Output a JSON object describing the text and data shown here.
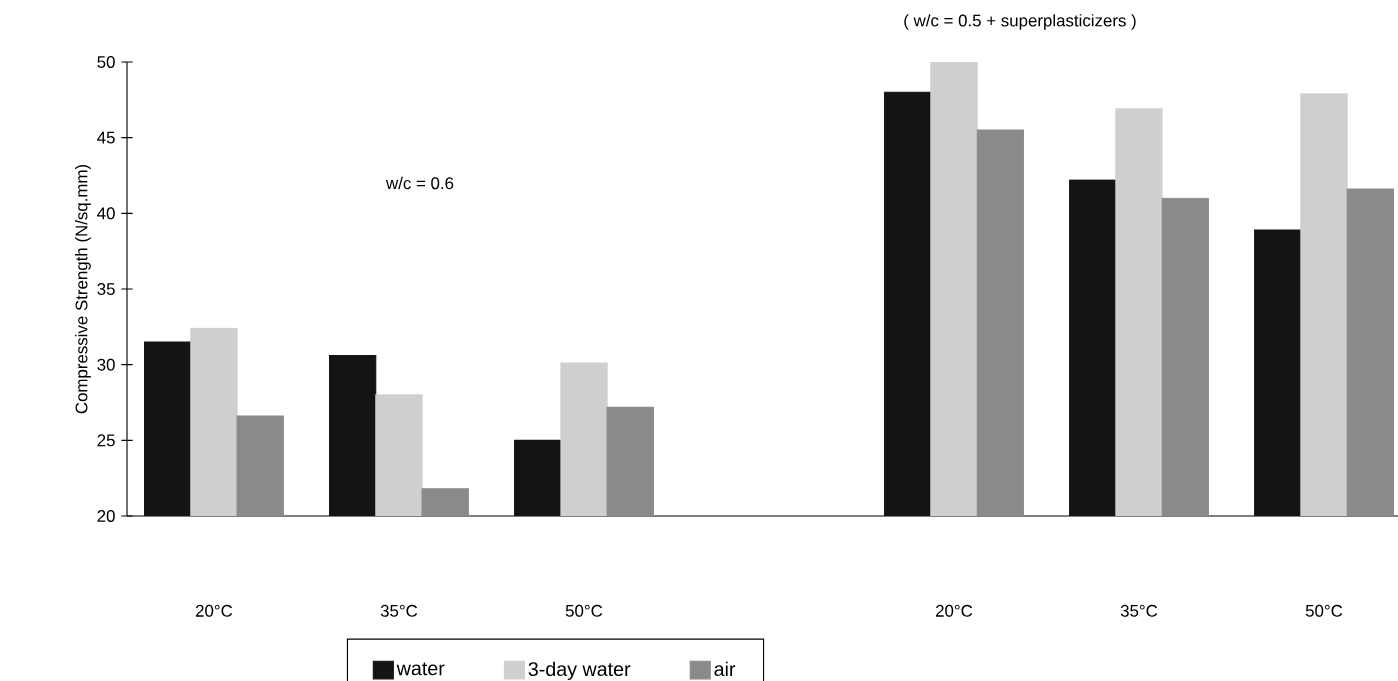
{
  "chart_data": {
    "type": "bar",
    "ylabel": "Compressive Strength (N/sq.mm)",
    "categories": [
      "20°C",
      "35°C",
      "50°C",
      null,
      "20°C",
      "35°C",
      "50°C"
    ],
    "series": [
      {
        "name": "water",
        "color": "#141414",
        "values": [
          31.5,
          30.6,
          25.0,
          null,
          48.0,
          42.2,
          38.9
        ]
      },
      {
        "name": "3-day water",
        "color": "#cfcfcf",
        "values": [
          32.4,
          28.0,
          30.1,
          null,
          50.0,
          46.9,
          47.9
        ]
      },
      {
        "name": "air",
        "color": "#8a8a8a",
        "values": [
          26.6,
          21.8,
          27.2,
          null,
          45.5,
          41.0,
          41.6
        ]
      }
    ],
    "ylim": [
      20,
      50
    ],
    "yticks": [
      20,
      25,
      30,
      35,
      40,
      45,
      50
    ],
    "annotations": [
      "( w/c = 0.5 + superplasticizers )",
      "w/c = 0.6"
    ],
    "grid": false,
    "legend": "bottom"
  }
}
